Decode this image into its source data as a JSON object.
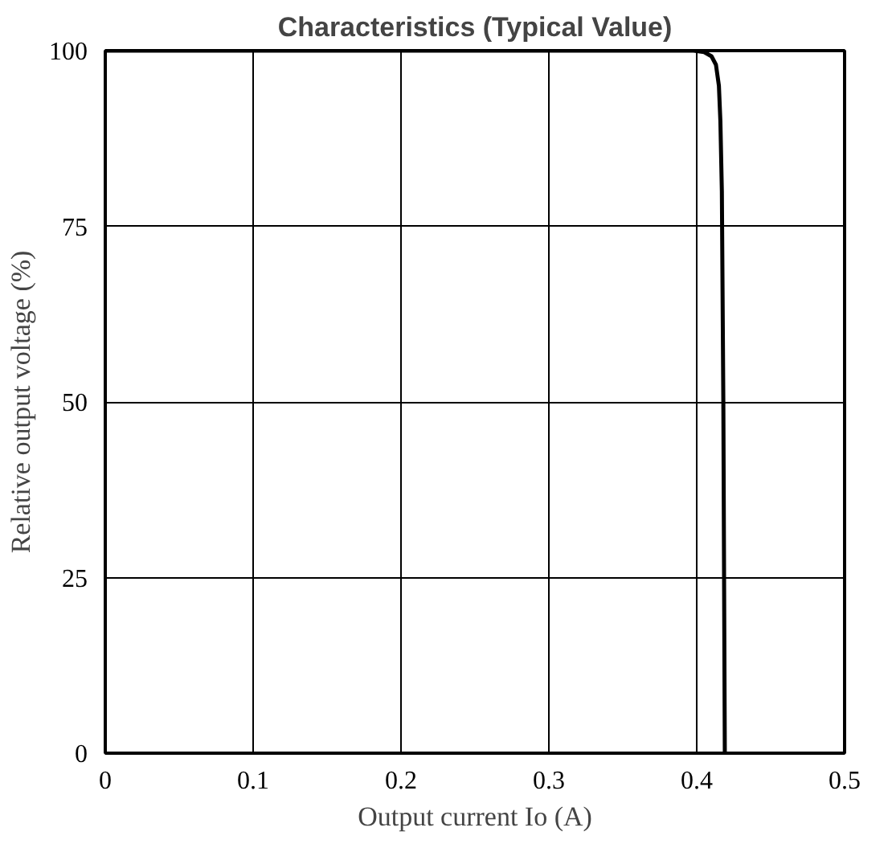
{
  "chart_data": {
    "type": "line",
    "title": "Characteristics (Typical Value)",
    "xlabel": "Output current Io (A)",
    "ylabel": "Relative output voltage (%)",
    "series": [
      {
        "color": "#000000",
        "x": [
          0,
          0.398,
          0.405,
          0.41,
          0.413,
          0.415,
          0.416,
          0.417,
          0.418,
          0.419
        ],
        "values": [
          100,
          100,
          99.8,
          99.2,
          98,
          95,
          90,
          80,
          50,
          0
        ]
      }
    ],
    "xlim": [
      0,
      0.5
    ],
    "ylim": [
      0,
      100
    ],
    "xticks": [
      0,
      0.1,
      0.2,
      0.3,
      0.4,
      0.5
    ],
    "yticks": [
      0,
      25,
      50,
      75,
      100
    ],
    "grid": true
  }
}
